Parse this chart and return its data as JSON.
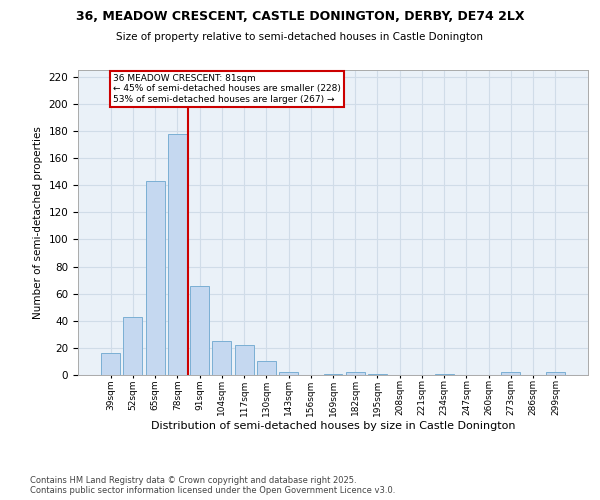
{
  "title": "36, MEADOW CRESCENT, CASTLE DONINGTON, DERBY, DE74 2LX",
  "subtitle": "Size of property relative to semi-detached houses in Castle Donington",
  "xlabel": "Distribution of semi-detached houses by size in Castle Donington",
  "ylabel": "Number of semi-detached properties",
  "footnote1": "Contains HM Land Registry data © Crown copyright and database right 2025.",
  "footnote2": "Contains public sector information licensed under the Open Government Licence v3.0.",
  "bin_labels": [
    "39sqm",
    "52sqm",
    "65sqm",
    "78sqm",
    "91sqm",
    "104sqm",
    "117sqm",
    "130sqm",
    "143sqm",
    "156sqm",
    "169sqm",
    "182sqm",
    "195sqm",
    "208sqm",
    "221sqm",
    "234sqm",
    "247sqm",
    "260sqm",
    "273sqm",
    "286sqm",
    "299sqm"
  ],
  "bar_values": [
    16,
    43,
    143,
    178,
    66,
    25,
    22,
    10,
    2,
    0,
    1,
    2,
    1,
    0,
    0,
    1,
    0,
    0,
    2,
    0,
    2
  ],
  "bar_color": "#c5d8f0",
  "bar_edge_color": "#7bafd4",
  "grid_color": "#d0dce8",
  "bg_color": "#eaf1f8",
  "red_line_x": 3.5,
  "annotation_text": "36 MEADOW CRESCENT: 81sqm\n← 45% of semi-detached houses are smaller (228)\n53% of semi-detached houses are larger (267) →",
  "annotation_box_color": "#cc0000",
  "ylim": [
    0,
    225
  ],
  "yticks": [
    0,
    20,
    40,
    60,
    80,
    100,
    120,
    140,
    160,
    180,
    200,
    220
  ]
}
